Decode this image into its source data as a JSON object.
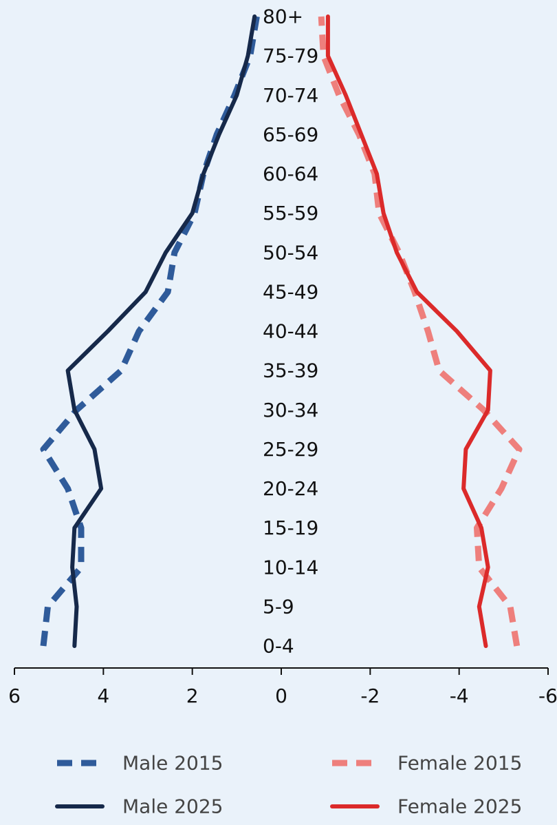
{
  "chart_data": {
    "type": "line",
    "orientation": "vertical-categories",
    "title": "",
    "xlabel": "",
    "ylabel": "",
    "categories": [
      "0-4",
      "5-9",
      "10-14",
      "15-19",
      "20-24",
      "25-29",
      "30-34",
      "35-39",
      "40-44",
      "45-49",
      "50-54",
      "55-59",
      "60-64",
      "65-69",
      "70-74",
      "75-79",
      "80+"
    ],
    "xlim": [
      6,
      -6
    ],
    "xticks": [
      6,
      4,
      2,
      0,
      -2,
      -4,
      -6
    ],
    "xtick_labels": [
      "6",
      "4",
      "2",
      "0",
      "-2",
      "-4",
      "-6"
    ],
    "grid": false,
    "legend_position": "bottom",
    "series": [
      {
        "name": "Male 2015",
        "color": "#2f5b9a",
        "style": "dashed",
        "values": [
          5.35,
          5.25,
          4.5,
          4.5,
          4.8,
          5.35,
          4.6,
          3.6,
          3.2,
          2.55,
          2.4,
          1.95,
          1.75,
          1.45,
          1.05,
          0.7,
          0.55
        ]
      },
      {
        "name": "Male 2025",
        "color": "#16294a",
        "style": "solid",
        "values": [
          4.65,
          4.6,
          4.7,
          4.65,
          4.05,
          4.2,
          4.65,
          4.8,
          3.9,
          3.05,
          2.6,
          2.0,
          1.75,
          1.4,
          1.0,
          0.75,
          0.6
        ]
      },
      {
        "name": "Female 2015",
        "color": "#ee7f7c",
        "style": "dashed",
        "values": [
          -5.3,
          -5.15,
          -4.45,
          -4.4,
          -4.95,
          -5.35,
          -4.55,
          -3.55,
          -3.3,
          -3.0,
          -2.65,
          -2.2,
          -2.1,
          -1.75,
          -1.3,
          -0.95,
          -0.9
        ]
      },
      {
        "name": "Female 2025",
        "color": "#db2a2a",
        "style": "solid",
        "values": [
          -4.6,
          -4.45,
          -4.65,
          -4.5,
          -4.1,
          -4.15,
          -4.65,
          -4.7,
          -3.95,
          -3.05,
          -2.6,
          -2.3,
          -2.15,
          -1.8,
          -1.45,
          -1.05,
          -1.05
        ]
      }
    ]
  }
}
